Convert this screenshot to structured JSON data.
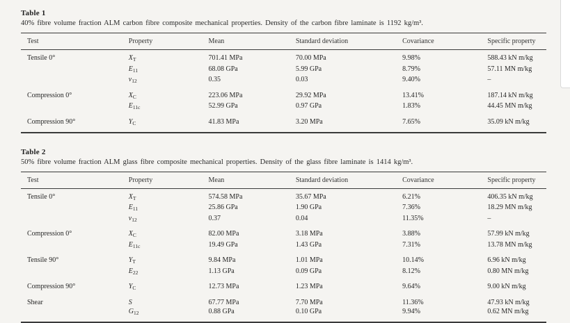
{
  "page": {
    "background": "#f5f4f1",
    "text_color": "#222222",
    "rule_color": "#3a3a3a"
  },
  "tables": [
    {
      "label": "Table 1",
      "caption": "40% fibre volume fraction ALM carbon fibre composite mechanical properties. Density of the carbon fibre laminate is 1192 kg/m³.",
      "headers": [
        "Test",
        "Property",
        "Mean",
        "Standard deviation",
        "Covariance",
        "Specific property"
      ],
      "groups": [
        {
          "test": "Tensile 0°",
          "rows": [
            {
              "property": "X_T",
              "mean": "701.41 MPa",
              "sd": "70.00 MPa",
              "cov": "9.98%",
              "specific": "588.43 kN m/kg"
            },
            {
              "property": "E_11",
              "mean": "68.08 GPa",
              "sd": "5.99 GPa",
              "cov": "8.79%",
              "specific": "57.11 MN m/kg"
            },
            {
              "property": "ν_12",
              "mean": "0.35",
              "sd": "0.03",
              "cov": "9.40%",
              "specific": "–"
            }
          ]
        },
        {
          "test": "Compression 0°",
          "rows": [
            {
              "property": "X_C",
              "mean": "223.06 MPa",
              "sd": "29.92 MPa",
              "cov": "13.41%",
              "specific": "187.14 kN m/kg"
            },
            {
              "property": "E_11c",
              "mean": "52.99 GPa",
              "sd": "0.97 GPa",
              "cov": "1.83%",
              "specific": "44.45 MN m/kg"
            }
          ]
        },
        {
          "test": "Compression 90°",
          "rows": [
            {
              "property": "Y_C",
              "mean": "41.83 MPa",
              "sd": "3.20 MPa",
              "cov": "7.65%",
              "specific": "35.09 kN m/kg"
            }
          ]
        }
      ]
    },
    {
      "label": "Table 2",
      "caption": "50% fibre volume fraction ALM glass fibre composite mechanical properties. Density of the glass fibre laminate is 1414 kg/m³.",
      "headers": [
        "Test",
        "Property",
        "Mean",
        "Standard deviation",
        "Covariance",
        "Specific property"
      ],
      "groups": [
        {
          "test": "Tensile 0°",
          "rows": [
            {
              "property": "X_T",
              "mean": "574.58 MPa",
              "sd": "35.67 MPa",
              "cov": "6.21%",
              "specific": "406.35 kN m/kg"
            },
            {
              "property": "E_11",
              "mean": "25.86 GPa",
              "sd": "1.90 GPa",
              "cov": "7.36%",
              "specific": "18.29 MN m/kg"
            },
            {
              "property": "ν_12",
              "mean": "0.37",
              "sd": "0.04",
              "cov": "11.35%",
              "specific": "–"
            }
          ]
        },
        {
          "test": "Compression 0°",
          "rows": [
            {
              "property": "X_C",
              "mean": "82.00 MPa",
              "sd": "3.18 MPa",
              "cov": "3.88%",
              "specific": "57.99 kN m/kg"
            },
            {
              "property": "E_11c",
              "mean": "19.49 GPa",
              "sd": "1.43 GPa",
              "cov": "7.31%",
              "specific": "13.78 MN m/kg"
            }
          ]
        },
        {
          "test": "Tensile 90°",
          "rows": [
            {
              "property": "Y_T",
              "mean": "9.84 MPa",
              "sd": "1.01 MPa",
              "cov": "10.14%",
              "specific": "6.96 kN m/kg"
            },
            {
              "property": "E_22",
              "mean": "1.13 GPa",
              "sd": "0.09 GPa",
              "cov": "8.12%",
              "specific": "0.80 MN m/kg"
            }
          ]
        },
        {
          "test": "Compression 90°",
          "rows": [
            {
              "property": "Y_C",
              "mean": "12.73 MPa",
              "sd": "1.23 MPa",
              "cov": "9.64%",
              "specific": "9.00 kN m/kg"
            }
          ]
        },
        {
          "test": "Shear",
          "rows": [
            {
              "property": "S",
              "mean": "67.77 MPa",
              "sd": "7.70 MPa",
              "cov": "11.36%",
              "specific": "47.93 kN m/kg"
            },
            {
              "property": "G_12",
              "mean": "0.88 GPa",
              "sd": "0.10 GPa",
              "cov": "9.94%",
              "specific": "0.62 MN m/kg"
            }
          ]
        }
      ]
    }
  ]
}
